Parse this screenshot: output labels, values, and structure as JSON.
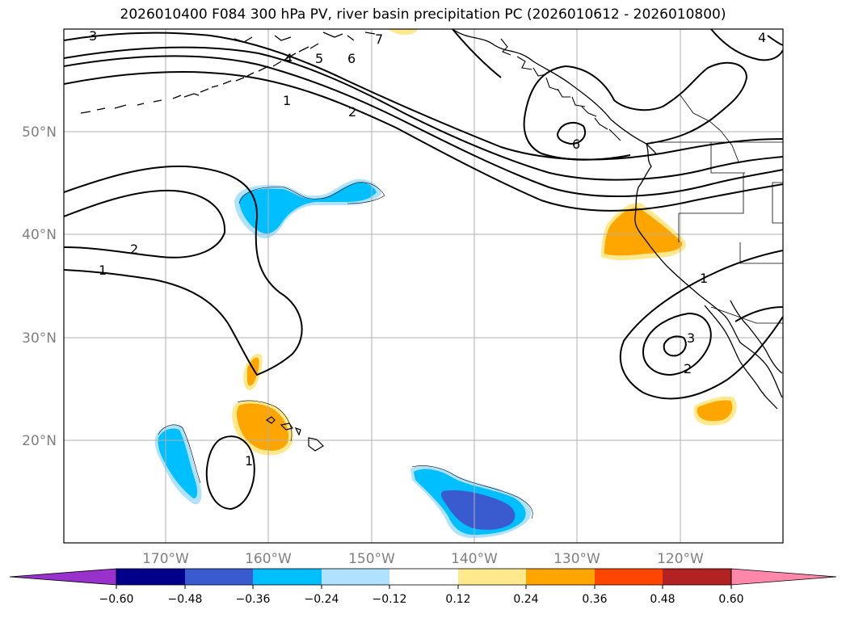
{
  "title": "2026010400 F084 300 hPa PV, river basin precipitation PC (2026010612 - 2026010800)",
  "map": {
    "lat_labels": [
      "50°N",
      "40°N",
      "30°N",
      "20°N"
    ],
    "lon_labels": [
      "170°W",
      "160°W",
      "150°W",
      "140°W",
      "130°W",
      "120°W"
    ],
    "contour_labels": [
      "3",
      "4",
      "5",
      "6",
      "7",
      "1",
      "2",
      "6",
      "2",
      "1",
      "1",
      "1",
      "3",
      "2",
      "4"
    ]
  },
  "colorbar": {
    "ticks": [
      "−0.60",
      "−0.48",
      "−0.36",
      "−0.24",
      "−0.12",
      "0.12",
      "0.24",
      "0.36",
      "0.48",
      "0.60"
    ],
    "colors": [
      "#9932cc",
      "#00008b",
      "#3a5bcf",
      "#00bfff",
      "#b0e2ff",
      "#ffffff",
      "#ffe98c",
      "#ffa500",
      "#ff4500",
      "#b22222",
      "#ff88aa"
    ]
  }
}
